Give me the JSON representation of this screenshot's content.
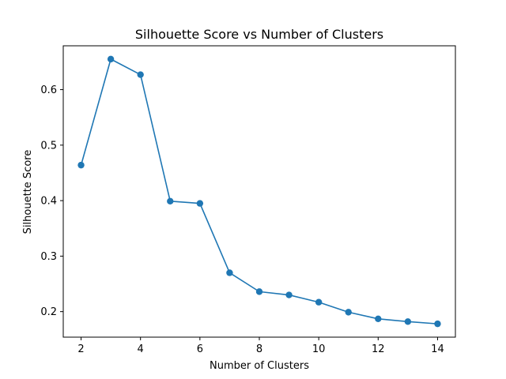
{
  "chart_data": {
    "type": "line",
    "title": "Silhouette Score vs Number of Clusters",
    "xlabel": "Number of Clusters",
    "ylabel": "Silhouette Score",
    "x": [
      2,
      3,
      4,
      5,
      6,
      7,
      8,
      9,
      10,
      11,
      12,
      13,
      14
    ],
    "series": [
      {
        "values": [
          0.464,
          0.655,
          0.627,
          0.399,
          0.395,
          0.27,
          0.236,
          0.23,
          0.217,
          0.199,
          0.187,
          0.182,
          0.178
        ],
        "color": "#1f77b4",
        "marker": "circle"
      }
    ],
    "xlim": [
      1.4,
      14.6
    ],
    "ylim": [
      0.154,
      0.679
    ],
    "xticks": [
      2,
      4,
      6,
      8,
      10,
      12,
      14
    ],
    "xtick_labels": [
      "2",
      "4",
      "6",
      "8",
      "10",
      "12",
      "14"
    ],
    "yticks": [
      0.2,
      0.3,
      0.4,
      0.5,
      0.6
    ],
    "ytick_labels": [
      "0.2",
      "0.3",
      "0.4",
      "0.5",
      "0.6"
    ],
    "grid": false,
    "legend": "none"
  }
}
